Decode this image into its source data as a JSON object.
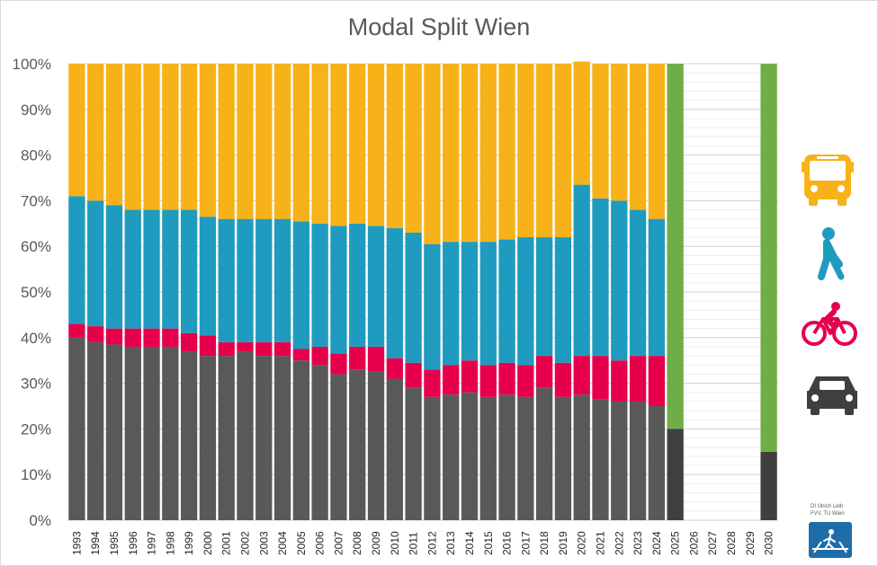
{
  "chart_data": {
    "type": "bar",
    "stacked": true,
    "title": "Modal Split Wien",
    "xlabel": "",
    "ylabel": "",
    "ylim": [
      0,
      100
    ],
    "yticks": [
      "0%",
      "10%",
      "20%",
      "30%",
      "40%",
      "50%",
      "60%",
      "70%",
      "80%",
      "90%",
      "100%"
    ],
    "grid": true,
    "legend": "right (icons: bus, walking, bicycle, car)",
    "categories": [
      "1993",
      "1994",
      "1995",
      "1996",
      "1997",
      "1998",
      "1999",
      "2000",
      "2001",
      "2002",
      "2003",
      "2004",
      "2005",
      "2006",
      "2007",
      "2008",
      "2009",
      "2010",
      "2011",
      "2012",
      "2013",
      "2014",
      "2015",
      "2016",
      "2017",
      "2018",
      "2019",
      "2020",
      "2021",
      "2022",
      "2023",
      "2024",
      "2025",
      "2026",
      "2027",
      "2028",
      "2029",
      "2030"
    ],
    "series": [
      {
        "color": "#595959",
        "values": [
          40,
          39,
          38.5,
          38,
          38,
          38,
          37,
          36,
          36,
          37,
          36,
          36,
          35,
          34,
          32,
          33,
          32.5,
          31,
          29,
          27,
          27.5,
          28,
          27,
          27.5,
          27,
          29,
          27,
          27.5,
          26.5,
          26,
          26,
          25,
          null,
          null,
          null,
          null,
          null,
          null
        ]
      },
      {
        "color": "#E6004C",
        "values": [
          3,
          3.5,
          3.5,
          4,
          4,
          4,
          4,
          4.5,
          3,
          2,
          3,
          3,
          2.5,
          4,
          4.5,
          5,
          5.5,
          4.5,
          5.5,
          6,
          6.5,
          7,
          7,
          7,
          7,
          7,
          7.5,
          8.5,
          9.5,
          9,
          10,
          11,
          null,
          null,
          null,
          null,
          null,
          null
        ]
      },
      {
        "color": "#1F9BBF",
        "values": [
          28,
          27.5,
          27,
          26,
          26,
          26,
          27,
          26,
          27,
          27,
          27,
          27,
          28,
          27,
          28,
          27,
          26.5,
          28.5,
          28.5,
          27.5,
          27,
          26,
          27,
          27,
          28,
          26,
          27.5,
          37.5,
          34.5,
          35,
          32,
          30,
          null,
          null,
          null,
          null,
          null,
          null
        ]
      },
      {
        "color": "#F7B219",
        "values": [
          29,
          30,
          31,
          32,
          32,
          32,
          32,
          33.5,
          34,
          34,
          34,
          34,
          34.5,
          35,
          35.5,
          35,
          35.5,
          36,
          37,
          39.5,
          39,
          39,
          39,
          38.5,
          38,
          38,
          38,
          27,
          29.5,
          30,
          32,
          34,
          null,
          null,
          null,
          null,
          null,
          null
        ]
      }
    ],
    "target_series": [
      {
        "color": "#3F3F3F",
        "values": [
          null,
          null,
          null,
          null,
          null,
          null,
          null,
          null,
          null,
          null,
          null,
          null,
          null,
          null,
          null,
          null,
          null,
          null,
          null,
          null,
          null,
          null,
          null,
          null,
          null,
          null,
          null,
          null,
          null,
          null,
          null,
          null,
          20,
          null,
          null,
          null,
          null,
          15
        ]
      },
      {
        "color": "#70AD47",
        "values": [
          null,
          null,
          null,
          null,
          null,
          null,
          null,
          null,
          null,
          null,
          null,
          null,
          null,
          null,
          null,
          null,
          null,
          null,
          null,
          null,
          null,
          null,
          null,
          null,
          null,
          null,
          null,
          null,
          null,
          null,
          null,
          null,
          80,
          null,
          null,
          null,
          null,
          85
        ]
      }
    ]
  },
  "legend_icons": [
    "bus-icon",
    "walking-person-icon",
    "bicycle-icon",
    "car-icon"
  ],
  "legend_colors": {
    "bus": "#F7B219",
    "walk": "#1F9BBF",
    "bike": "#E6004C",
    "car": "#3F3F3F"
  },
  "credit": {
    "line1": "DI Ulrich Leth",
    "line2": "FVV, TU Wien"
  },
  "logo": {
    "name": "tu-wien-pedestrian-logo",
    "color": "#1F6DA8"
  }
}
